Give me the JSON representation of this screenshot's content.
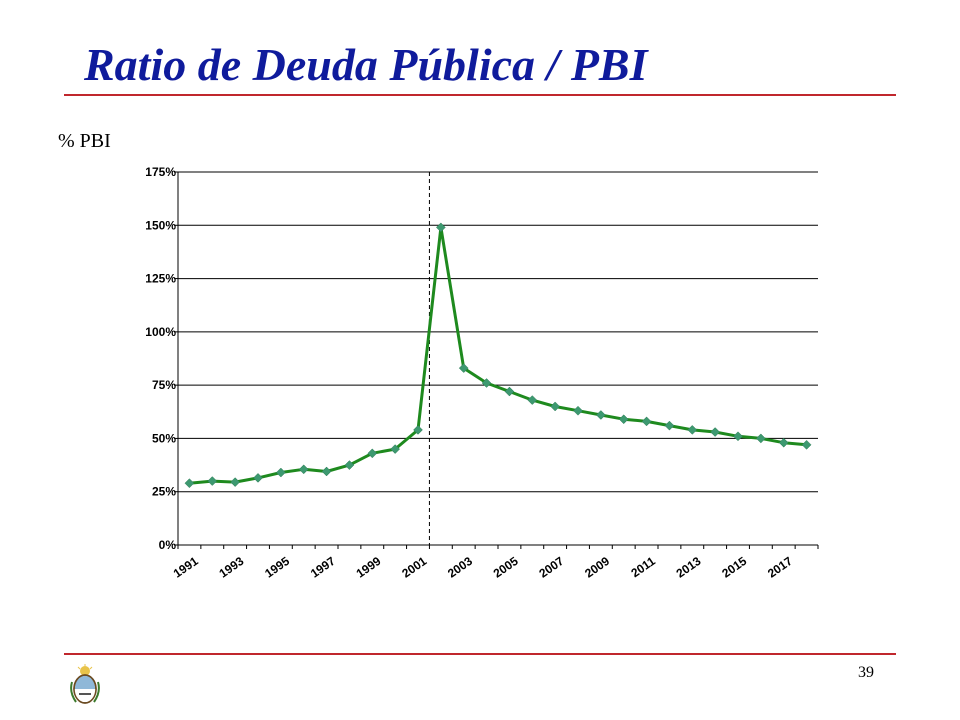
{
  "slide": {
    "title": "Ratio de Deuda Pública / PBI",
    "unit_label": "% PBI",
    "page_number": "39",
    "logo": "argentine-coat-of-arms-icon",
    "accent_color": "#c0272d",
    "title_color": "#0f1b9c"
  },
  "chart_data": {
    "type": "line",
    "title": "",
    "xlabel": "",
    "ylabel": "% PBI",
    "x": [
      1991,
      1992,
      1993,
      1994,
      1995,
      1996,
      1997,
      1998,
      1999,
      2000,
      2001,
      2002,
      2003,
      2004,
      2005,
      2006,
      2007,
      2008,
      2009,
      2010,
      2011,
      2012,
      2013,
      2014,
      2015,
      2016,
      2017,
      2018
    ],
    "x_tick_labels": [
      "1991",
      "1993",
      "1995",
      "1997",
      "1999",
      "2001",
      "2003",
      "2005",
      "2007",
      "2009",
      "2011",
      "2013",
      "2015",
      "2017"
    ],
    "ylim": [
      0,
      175
    ],
    "y_ticks": [
      0,
      25,
      50,
      75,
      100,
      125,
      150,
      175
    ],
    "y_tick_labels": [
      "0%",
      "25%",
      "50%",
      "75%",
      "100%",
      "125%",
      "150%",
      "175%"
    ],
    "grid": "horizontal",
    "legend": "none",
    "series": [
      {
        "values": [
          29,
          30,
          29.5,
          31.5,
          34,
          35.5,
          34.5,
          37.5,
          43,
          45,
          54,
          149,
          83,
          76,
          72,
          68,
          65,
          63,
          61,
          59,
          58,
          56,
          54,
          53,
          51,
          50,
          48,
          47
        ],
        "color": "#1e8a1e",
        "marker_color": "#3d9970"
      }
    ],
    "reference_line": {
      "x": 2001.5,
      "style": "dashed"
    }
  }
}
